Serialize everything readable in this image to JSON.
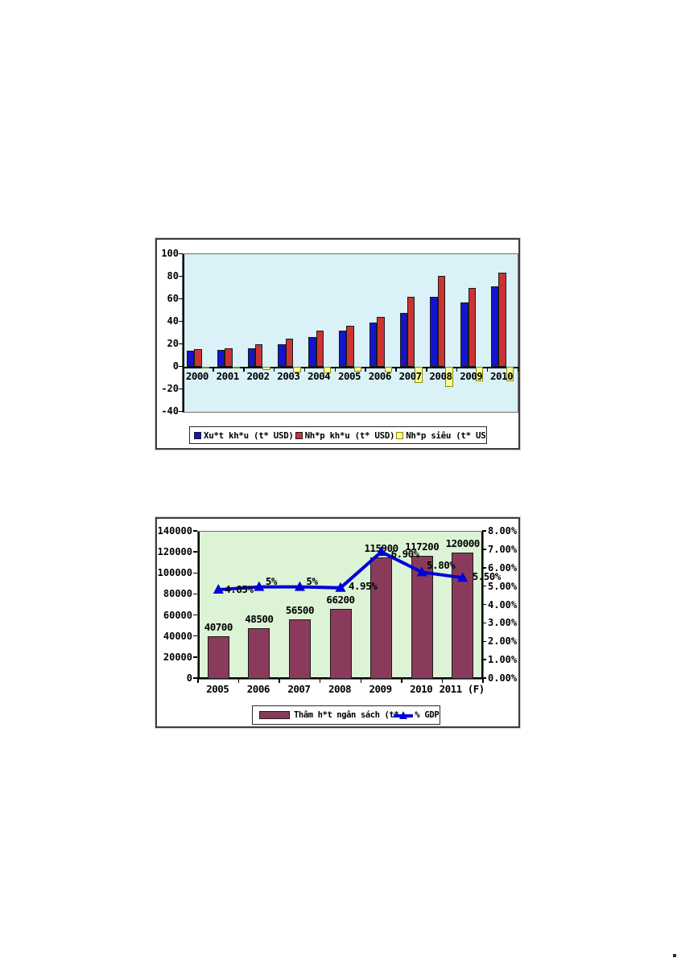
{
  "page": {
    "background": "#ffffff"
  },
  "chart_data": [
    {
      "type": "bar",
      "title": "",
      "categories": [
        "2000",
        "2001",
        "2002",
        "2003",
        "2004",
        "2005",
        "2006",
        "2007",
        "2008",
        "2009",
        "2010"
      ],
      "series": [
        {
          "name": "Xu*t kh*u (t* USD)",
          "color": "#1414cc",
          "values": [
            14.5,
            15,
            16.5,
            20,
            26.5,
            32.5,
            39,
            48,
            62.5,
            57,
            71.5
          ]
        },
        {
          "name": "Nh*p kh*u (t* USD)",
          "color": "#cc3333",
          "values": [
            15.5,
            16.5,
            20,
            25,
            32,
            36.5,
            44.5,
            62.5,
            80.5,
            70,
            83.5
          ]
        },
        {
          "name": "Nh*p siêu (t* US",
          "color": "#ffff99",
          "border_color": "#8a8a00",
          "values": [
            -1.5,
            -1.5,
            -3,
            -5,
            -5.5,
            -4.5,
            -5,
            -14,
            -18,
            -13,
            -12.5
          ]
        }
      ],
      "ylim": [
        -40,
        100
      ],
      "ytick_labels": [
        "100",
        "80",
        "60",
        "40",
        "20",
        "0",
        "-20",
        "-40"
      ],
      "grid": false,
      "legend_position": "bottom",
      "plot_bg": "#d9f1f7",
      "xlabel": "",
      "ylabel": ""
    },
    {
      "type": "bar+line",
      "title": "",
      "categories": [
        "2005",
        "2006",
        "2007",
        "2008",
        "2009",
        "2010",
        "2011 (F)"
      ],
      "bar_series": {
        "name": "Thâm h*t ngân sách (t*",
        "color": "#8a3b5c",
        "values": [
          40700,
          48500,
          56500,
          66200,
          115900,
          117200,
          120000
        ],
        "labels": [
          "40700",
          "48500",
          "56500",
          "66200",
          "115900",
          "117200",
          "120000"
        ]
      },
      "line_series": {
        "name": "% GDP",
        "color": "#0000d8",
        "values": [
          4.85,
          5,
          5,
          4.95,
          6.9,
          5.8,
          5.5
        ],
        "labels": [
          "4.85%",
          "5%",
          "5%",
          "4.95%",
          "6.90%",
          "5.80%",
          "5.50%"
        ]
      },
      "left_axis": {
        "min": 0,
        "max": 140000,
        "tick_labels": [
          "140000",
          "120000",
          "100000",
          "80000",
          "60000",
          "40000",
          "20000",
          "0"
        ]
      },
      "right_axis": {
        "min": 0,
        "max": 8,
        "tick_labels": [
          "8.00%",
          "7.00%",
          "6.00%",
          "5.00%",
          "4.00%",
          "3.00%",
          "2.00%",
          "1.00%",
          "0.00%"
        ]
      },
      "grid": false,
      "legend_position": "bottom",
      "plot_bg": "#dcf3d6",
      "xlabel": "",
      "ylabel": ""
    }
  ]
}
